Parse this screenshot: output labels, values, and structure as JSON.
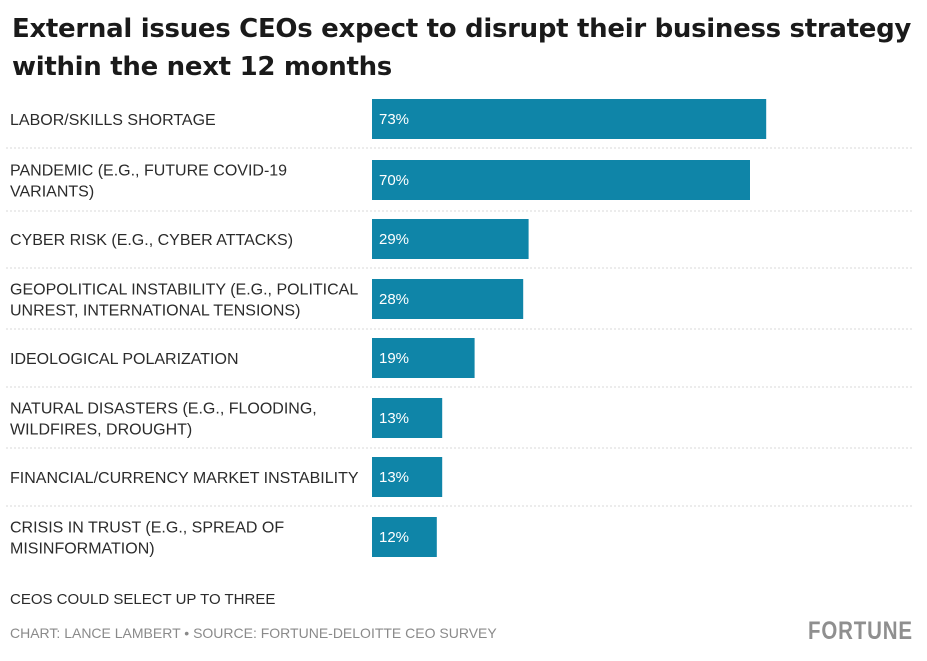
{
  "chart_data": {
    "type": "bar",
    "orientation": "horizontal",
    "title": "External issues CEOs expect to disrupt their business strategy within the next 12 months",
    "categories": [
      [
        "LABOR/SKILLS SHORTAGE"
      ],
      [
        "PANDEMIC (E.G., FUTURE COVID-19",
        "VARIANTS)"
      ],
      [
        "CYBER RISK (E.G., CYBER ATTACKS)"
      ],
      [
        "GEOPOLITICAL INSTABILITY (E.G., POLITICAL",
        "UNREST, INTERNATIONAL TENSIONS)"
      ],
      [
        "IDEOLOGICAL POLARIZATION"
      ],
      [
        "NATURAL DISASTERS (E.G., FLOODING,",
        "WILDFIRES, DROUGHT)"
      ],
      [
        "FINANCIAL/CURRENCY MARKET INSTABILITY"
      ],
      [
        "CRISIS IN TRUST (E.G., SPREAD OF",
        "MISINFORMATION)"
      ]
    ],
    "values": [
      73,
      70,
      29,
      28,
      19,
      13,
      13,
      12
    ],
    "value_labels": [
      "73%",
      "70%",
      "29%",
      "28%",
      "19%",
      "13%",
      "13%",
      "12%"
    ],
    "unit": "%",
    "xlim": [
      0,
      100
    ],
    "bar_color": "#0f85a8",
    "grid": false,
    "separator_color": "#d9d9d9",
    "legend": "none"
  },
  "footnote": "CEOS COULD SELECT UP TO THREE",
  "credit": "CHART: LANCE LAMBERT • SOURCE: FORTUNE-DELOITTE CEO SURVEY",
  "brand": "FORTUNE"
}
